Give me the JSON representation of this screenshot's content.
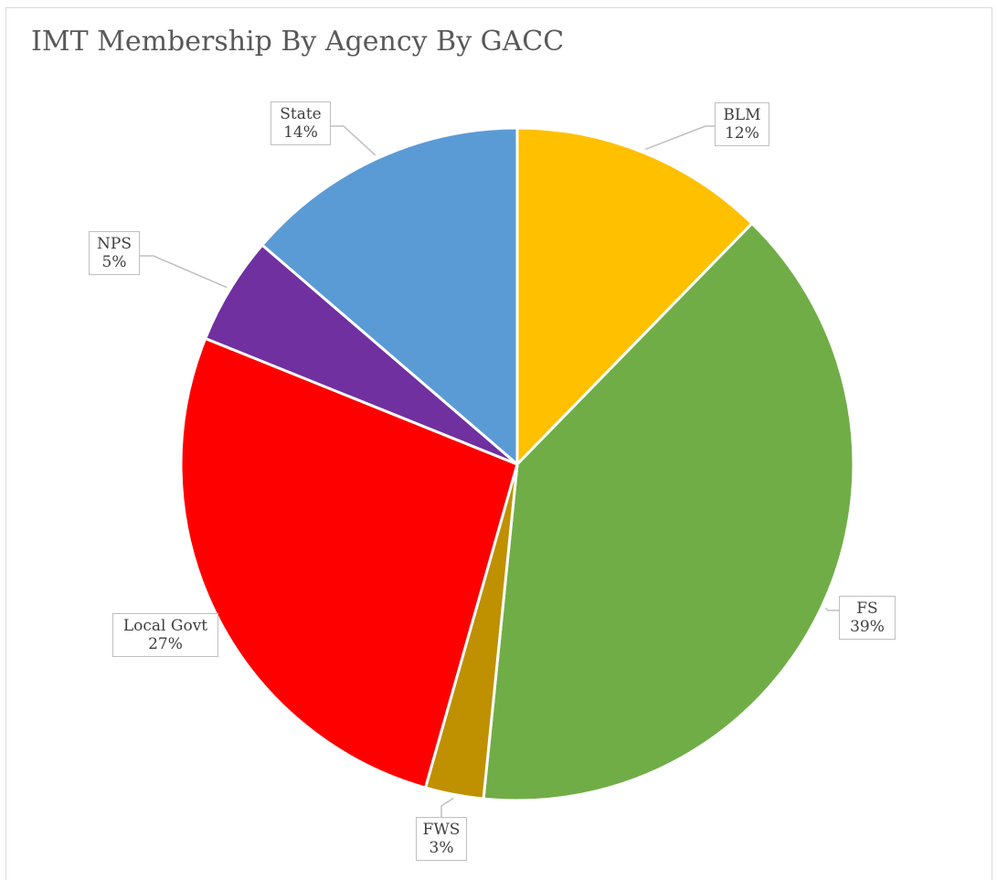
{
  "chart_data": {
    "type": "pie",
    "title": "IMT Membership By Agency By GACC",
    "slices": [
      {
        "label": "BLM",
        "pct_label": "12%",
        "value": 12.3,
        "color": "#ffc000"
      },
      {
        "label": "FS",
        "pct_label": "39%",
        "value": 39.3,
        "color": "#70ad47"
      },
      {
        "label": "FWS",
        "pct_label": "3%",
        "value": 2.8,
        "color": "#bf9000"
      },
      {
        "label": "Local Govt",
        "pct_label": "27%",
        "value": 26.7,
        "color": "#ff0000"
      },
      {
        "label": "NPS",
        "pct_label": "5%",
        "value": 5.2,
        "color": "#7030a0"
      },
      {
        "label": "State",
        "pct_label": "14%",
        "value": 13.7,
        "color": "#5b9bd5"
      }
    ],
    "legend": "none",
    "data_labels": "outside with leader lines"
  }
}
